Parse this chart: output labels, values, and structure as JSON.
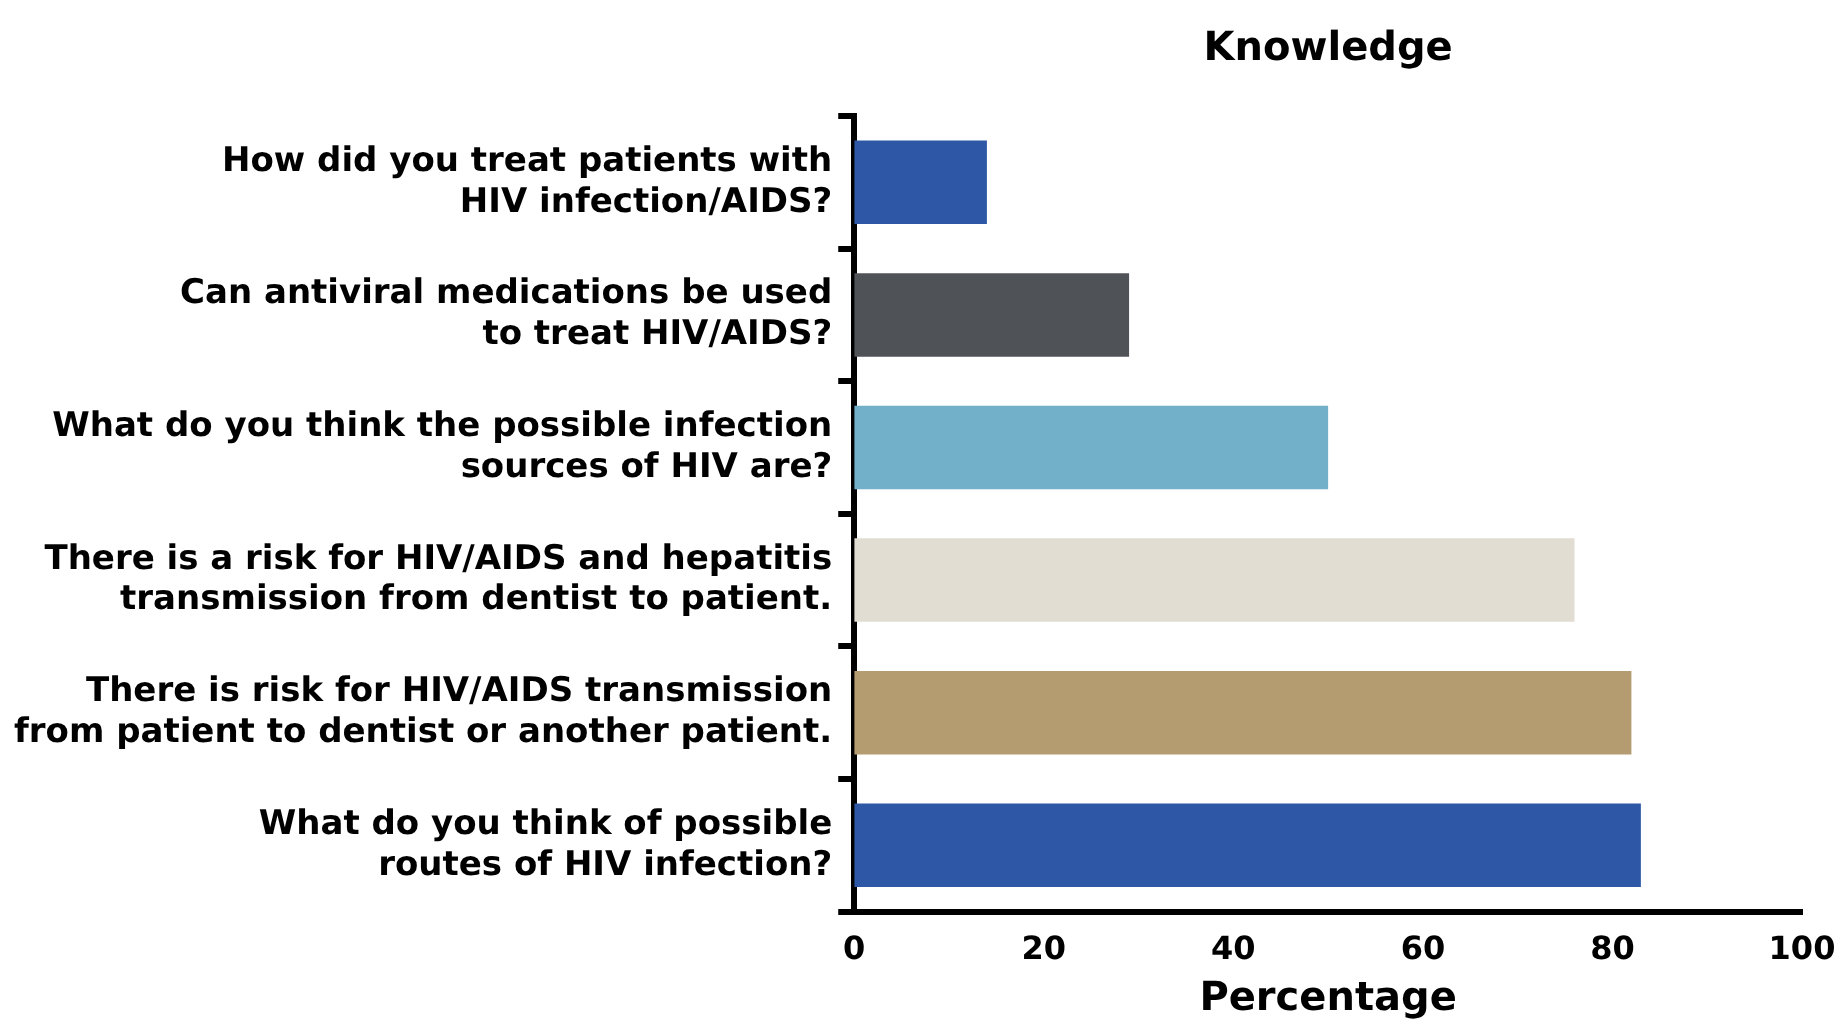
{
  "chart_data": {
    "type": "bar",
    "orientation": "horizontal",
    "title": "Knowledge",
    "xlabel": "Percentage",
    "categories": [
      "How did you treat patients with\nHIV infection/AIDS?",
      "Can antiviral medications be used\nto treat HIV/AIDS?",
      "What do you think the possible infection\nsources of HIV are?",
      "There is a risk for HIV/AIDS and hepatitis\ntransmission from dentist to patient.",
      "There is risk for HIV/AIDS transmission\nfrom patient to dentist or another patient.",
      "What do you think of possible\nroutes of HIV infection?"
    ],
    "values": [
      14,
      29,
      50,
      76,
      82,
      83
    ],
    "colors": [
      "#2e58a6",
      "#4f5358",
      "#72b0c9",
      "#e1ddd2",
      "#b59c70",
      "#2e58a6"
    ],
    "xlim": [
      0,
      100
    ],
    "xticks": [
      0,
      20,
      40,
      60,
      80,
      100
    ],
    "grid": false,
    "legend": false
  }
}
